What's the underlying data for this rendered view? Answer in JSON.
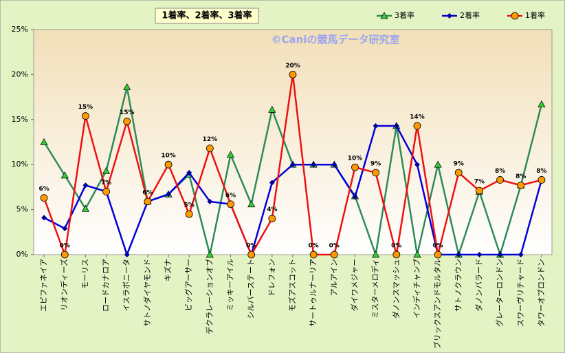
{
  "chart_data": {
    "type": "line",
    "title": "1着率、2着率、3着率",
    "watermark": "©Caniの競馬データ研究室",
    "categories": [
      "エピファネイア",
      "リオンディーズ",
      "モーリス",
      "ロードカナロア",
      "イスラボニータ",
      "サトノダイヤモンド",
      "キズナ",
      "ビッグアーサー",
      "デクラレーションオブ",
      "ミッキーアイル",
      "シルバーステート",
      "ドレフォン",
      "モズアスコット",
      "サートゥルナーリア",
      "アルアイン",
      "ダイワメジャー",
      "ミスターメロディ",
      "ダノンスマッシュ",
      "インディチャンプ",
      "ブリックスアンドモルタル",
      "サトノクラウン",
      "ダノンバラード",
      "グレーターロンドン",
      "スワーヴリチャード",
      "タワーオブロンドン"
    ],
    "series": [
      {
        "name": "3着率",
        "color": "#2e8b57",
        "marker": "triangle",
        "marker_color": "#33cc33",
        "values": [
          12.5,
          8.8,
          5.1,
          9.3,
          18.6,
          5.9,
          6.7,
          8.9,
          0,
          11.1,
          5.6,
          16.1,
          10.0,
          10.0,
          10.0,
          6.5,
          0,
          14.3,
          0,
          10.0,
          0,
          7.0,
          0,
          7.7,
          16.7
        ]
      },
      {
        "name": "2着率",
        "color": "#0000dd",
        "marker": "diamond",
        "marker_color": "#000099",
        "values": [
          4.1,
          2.9,
          7.7,
          7.0,
          0,
          5.9,
          6.7,
          9.1,
          5.9,
          5.6,
          0,
          8.0,
          10.0,
          10.0,
          10.0,
          6.4,
          14.3,
          14.3,
          10.0,
          0,
          0,
          0,
          0,
          0,
          8.3
        ]
      },
      {
        "name": "1着率",
        "color": "#ee1111",
        "marker": "circle",
        "marker_color": "#ff9900",
        "values": [
          6.3,
          0,
          15.4,
          7.0,
          14.8,
          5.9,
          10.0,
          4.5,
          11.8,
          5.6,
          0,
          4.0,
          20.0,
          0,
          0,
          9.7,
          9.1,
          0,
          14.3,
          0,
          9.1,
          7.1,
          8.3,
          7.7,
          8.3
        ],
        "value_labels": [
          "6%",
          "0%",
          "15%",
          "7%",
          "15%",
          "6%",
          "10%",
          "5%",
          "12%",
          "6%",
          "0%",
          "4%",
          "20%",
          "0%",
          "0%",
          "10%",
          "9%",
          "0%",
          "14%",
          "0%",
          "9%",
          "7%",
          "8%",
          "8%",
          "8%"
        ]
      }
    ],
    "ylim": [
      0,
      25
    ],
    "yticks": [
      {
        "value": 0,
        "label": "0%"
      },
      {
        "value": 5,
        "label": "5%"
      },
      {
        "value": 10,
        "label": "10%"
      },
      {
        "value": 15,
        "label": "15%"
      },
      {
        "value": 20,
        "label": "20%"
      },
      {
        "value": 25,
        "label": "25%"
      }
    ],
    "grid": false
  }
}
